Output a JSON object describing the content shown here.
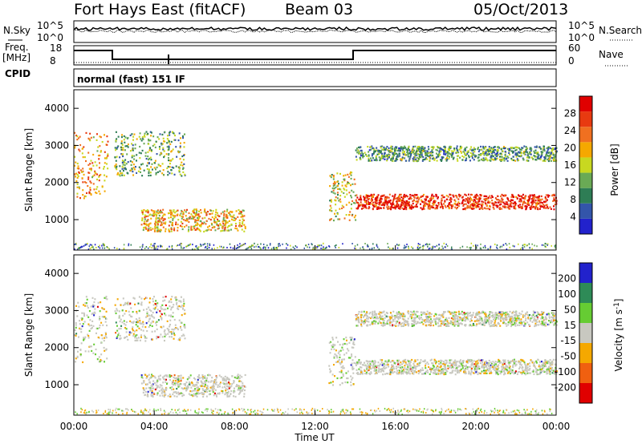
{
  "header": {
    "title": "Fort Hays East (fitACF)",
    "beam": "Beam 03",
    "date": "05/Oct/2013"
  },
  "noise_panel": {
    "left_label": "N.Sky",
    "right_label": "N.Search",
    "left_ticks": [
      "10^5",
      "10^0"
    ],
    "right_ticks": [
      "10^5",
      "10^0"
    ]
  },
  "freq_panel": {
    "left_label_1": "Freq.",
    "left_label_2": "[MHz]",
    "cpid_label": "CPID",
    "left_ticks": [
      "18",
      "8"
    ],
    "right_label": "Nave",
    "right_ticks": [
      "60",
      "0"
    ],
    "mode_text": "normal (fast) 151 IF"
  },
  "colors": {
    "power": [
      "#2222cc",
      "#3355aa",
      "#2e7d55",
      "#6aaa55",
      "#c8d820",
      "#f5a800",
      "#f07020",
      "#e83a10",
      "#e00000"
    ],
    "velocity": [
      "#e00000",
      "#f06010",
      "#f5a800",
      "#c8c8c0",
      "#66cc33",
      "#2e8b57",
      "#2222cc"
    ]
  },
  "chart_data": [
    {
      "type": "heatmap",
      "quantity": "Power",
      "ylabel": "Slant Range [km]",
      "ylim": [
        180,
        4500
      ],
      "y_ticks": [
        "1000",
        "2000",
        "3000",
        "4000"
      ],
      "x_ticks": [
        "00:00",
        "04:00",
        "08:00",
        "12:00",
        "16:00",
        "20:00",
        "00:00"
      ],
      "colorbar_label": "Power [dB]",
      "colorbar_ticks": [
        "4",
        "8",
        "12",
        "16",
        "20",
        "24",
        "28"
      ],
      "features": [
        {
          "time_start": "00:00",
          "time_end": "01:40",
          "range_start_km": 1600,
          "range_end_km": 3400,
          "level_db": 20
        },
        {
          "time_start": "02:00",
          "time_end": "05:30",
          "range_start_km": 2200,
          "range_end_km": 3400,
          "level_db": 12
        },
        {
          "time_start": "03:20",
          "time_end": "08:30",
          "range_start_km": 700,
          "range_end_km": 1300,
          "level_db": 18
        },
        {
          "time_start": "12:40",
          "time_end": "14:00",
          "range_start_km": 1000,
          "range_end_km": 2300,
          "level_db": 16
        },
        {
          "time_start": "14:00",
          "time_end": "24:00",
          "range_start_km": 1300,
          "range_end_km": 1700,
          "level_db": 26
        },
        {
          "time_start": "14:00",
          "time_end": "24:00",
          "range_start_km": 2600,
          "range_end_km": 3000,
          "level_db": 10
        }
      ]
    },
    {
      "type": "heatmap",
      "quantity": "Velocity",
      "ylabel": "Slant Range [km]",
      "xlabel": "Time UT",
      "ylim": [
        180,
        4500
      ],
      "y_ticks": [
        "1000",
        "2000",
        "3000",
        "4000"
      ],
      "x_ticks": [
        "00:00",
        "04:00",
        "08:00",
        "12:00",
        "16:00",
        "20:00",
        "00:00"
      ],
      "colorbar_label": "Velocity [m s^-1]",
      "colorbar_ticks": [
        "200",
        "100",
        "50",
        "15",
        "-15",
        "-50",
        "-100",
        "-200"
      ],
      "features": [
        {
          "time_start": "00:00",
          "time_end": "01:40",
          "range_start_km": 1600,
          "range_end_km": 3400,
          "velocity_ms": 0
        },
        {
          "time_start": "02:00",
          "time_end": "05:30",
          "range_start_km": 2200,
          "range_end_km": 3400,
          "velocity_ms": 0
        },
        {
          "time_start": "03:20",
          "time_end": "08:30",
          "range_start_km": 700,
          "range_end_km": 1300,
          "velocity_ms": 0
        },
        {
          "time_start": "12:40",
          "time_end": "14:00",
          "range_start_km": 1000,
          "range_end_km": 2300,
          "velocity_ms": 0
        },
        {
          "time_start": "14:00",
          "time_end": "24:00",
          "range_start_km": 1300,
          "range_end_km": 1700,
          "velocity_ms": 0
        },
        {
          "time_start": "14:00",
          "time_end": "24:00",
          "range_start_km": 2600,
          "range_end_km": 3000,
          "velocity_ms": 0
        }
      ]
    }
  ]
}
